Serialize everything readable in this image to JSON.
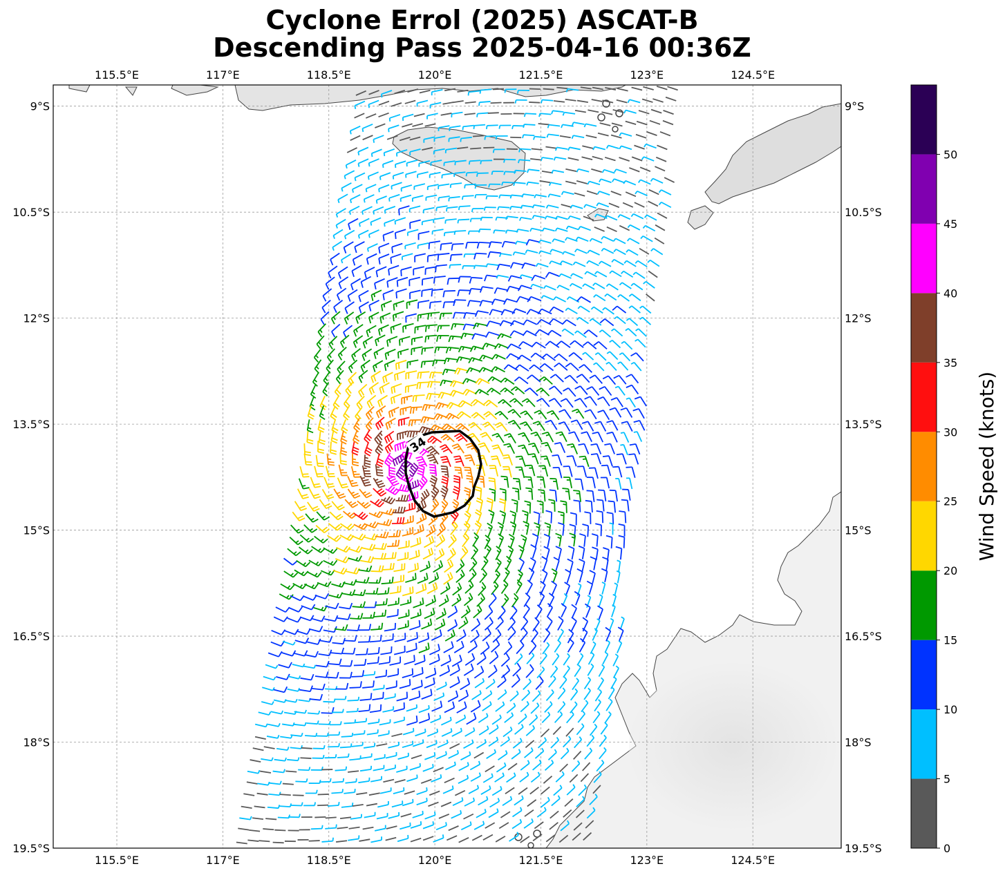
{
  "title": {
    "line1": "Cyclone Errol (2025) ASCAT-B",
    "line2": "Descending Pass 2025-04-16 00:36Z"
  },
  "map": {
    "lon_range": [
      114.6,
      125.75
    ],
    "lat_range": [
      -19.5,
      -8.7
    ],
    "lon_ticks": [
      {
        "value": 115.5,
        "label": "115.5°E"
      },
      {
        "value": 117.0,
        "label": "117°E"
      },
      {
        "value": 118.5,
        "label": "118.5°E"
      },
      {
        "value": 120.0,
        "label": "120°E"
      },
      {
        "value": 121.5,
        "label": "121.5°E"
      },
      {
        "value": 123.0,
        "label": "123°E"
      },
      {
        "value": 124.5,
        "label": "124.5°E"
      }
    ],
    "lat_ticks": [
      {
        "value": -9.0,
        "label": "9°S"
      },
      {
        "value": -10.5,
        "label": "10.5°S"
      },
      {
        "value": -12.0,
        "label": "12°S"
      },
      {
        "value": -13.5,
        "label": "13.5°S"
      },
      {
        "value": -15.0,
        "label": "15°S"
      },
      {
        "value": -16.5,
        "label": "16.5°S"
      },
      {
        "value": -18.0,
        "label": "18°S"
      },
      {
        "value": -19.5,
        "label": "19.5°S"
      }
    ],
    "gridlines": true,
    "storm_center": {
      "lon": 119.6,
      "lat": -14.15
    },
    "contour": {
      "label": "34",
      "knots": 34
    },
    "swath_corners": [
      [
        119.0,
        -8.7
      ],
      [
        123.6,
        -8.7
      ],
      [
        122.3,
        -19.5
      ],
      [
        117.1,
        -19.5
      ]
    ]
  },
  "colorbar": {
    "label": "Wind Speed (knots)",
    "tick_labels": [
      "0",
      "5",
      "10",
      "15",
      "20",
      "25",
      "30",
      "35",
      "40",
      "45",
      "50"
    ],
    "bins": [
      {
        "min": 0,
        "max": 5,
        "color": "#595959"
      },
      {
        "min": 5,
        "max": 10,
        "color": "#00bfff"
      },
      {
        "min": 10,
        "max": 15,
        "color": "#0033ff"
      },
      {
        "min": 15,
        "max": 20,
        "color": "#009900"
      },
      {
        "min": 20,
        "max": 25,
        "color": "#ffd700"
      },
      {
        "min": 25,
        "max": 30,
        "color": "#ff8c00"
      },
      {
        "min": 30,
        "max": 35,
        "color": "#ff0f0f"
      },
      {
        "min": 35,
        "max": 40,
        "color": "#7f3f2a"
      },
      {
        "min": 40,
        "max": 45,
        "color": "#ff00ff"
      },
      {
        "min": 45,
        "max": 50,
        "color": "#8000b0"
      },
      {
        "min": 50,
        "max": 55,
        "color": "#2b0055"
      }
    ]
  }
}
